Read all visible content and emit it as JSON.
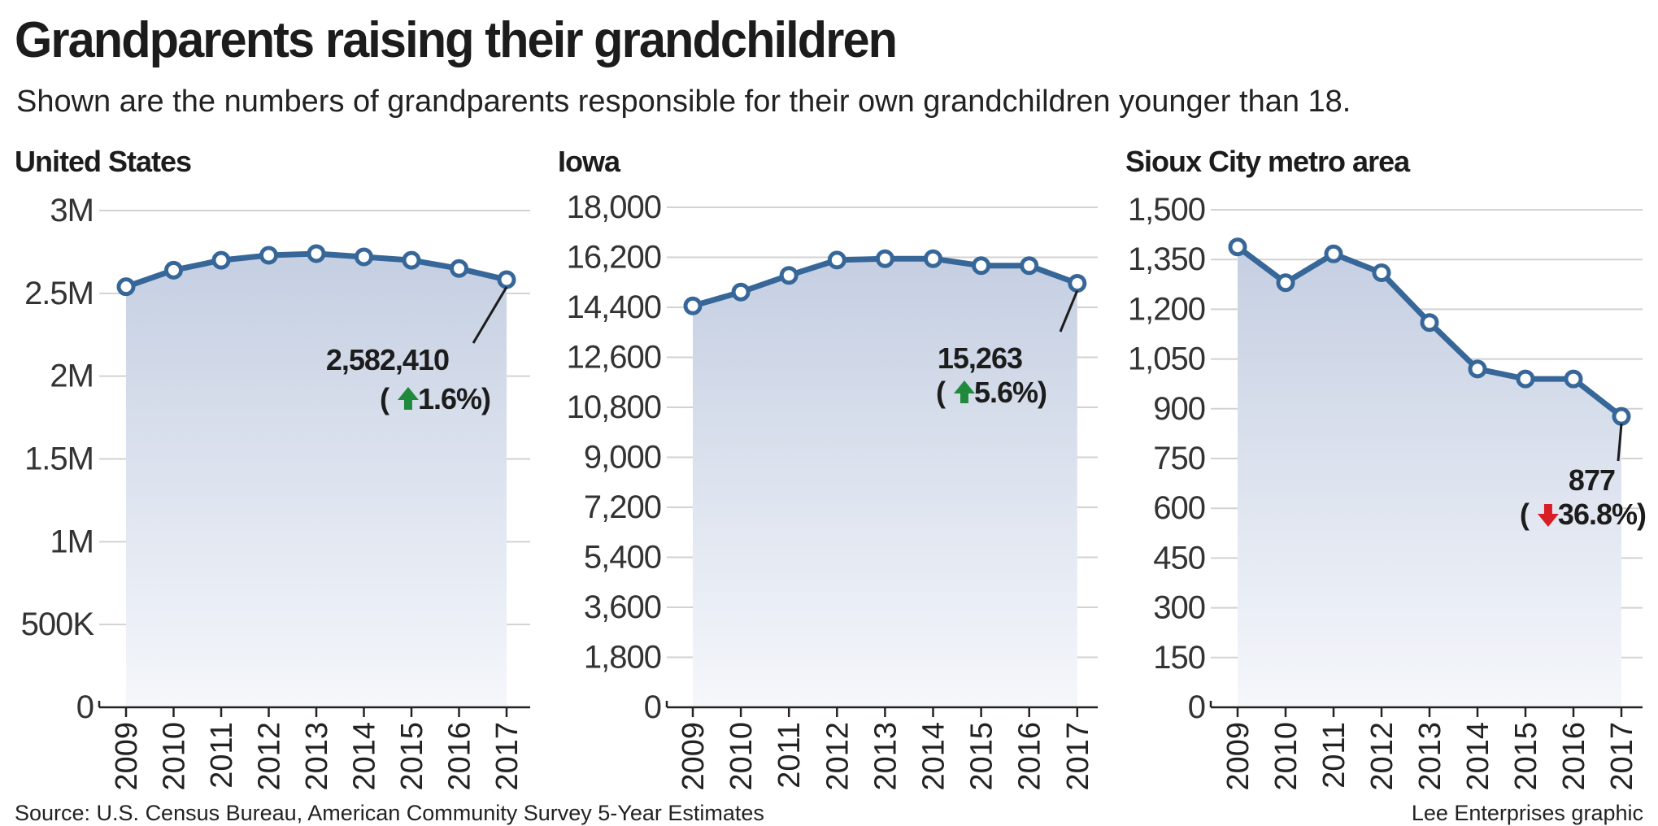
{
  "header": {
    "title": "Grandparents raising their grandchildren",
    "subtitle": "Shown are the numbers of grandparents responsible for their own grandchildren younger than 18."
  },
  "footer": {
    "source": "Source: U.S. Census Bureau, American Community Survey 5-Year Estimates",
    "credit": "Lee Enterprises graphic"
  },
  "colors": {
    "line": "#376799",
    "fill_top": "#c5cfe2",
    "fill_bottom": "#f5f7fb",
    "grid": "#d2d2d2",
    "up_arrow": "#1f8a3c",
    "down_arrow": "#d81f26"
  },
  "chart_data": [
    {
      "type": "area",
      "title": "United States",
      "categories": [
        "2009",
        "2010",
        "2011",
        "2012",
        "2013",
        "2014",
        "2015",
        "2016",
        "2017"
      ],
      "values": [
        2540000,
        2640000,
        2700000,
        2730000,
        2740000,
        2720000,
        2700000,
        2650000,
        2582410
      ],
      "ylim": [
        0,
        3000000
      ],
      "yticks": [
        0,
        500000,
        1000000,
        1500000,
        2000000,
        2500000,
        3000000
      ],
      "ytick_labels": [
        "0",
        "500K",
        "1M",
        "1.5M",
        "2M",
        "2.5M",
        "3M"
      ],
      "annotation": {
        "value": "2,582,410",
        "change": "1.6%",
        "direction": "up"
      }
    },
    {
      "type": "area",
      "title": "Iowa",
      "categories": [
        "2009",
        "2010",
        "2011",
        "2012",
        "2013",
        "2014",
        "2015",
        "2016",
        "2017"
      ],
      "values": [
        14450,
        14950,
        15550,
        16100,
        16150,
        16150,
        15900,
        15900,
        15263
      ],
      "ylim": [
        0,
        18000
      ],
      "yticks": [
        0,
        1800,
        3600,
        5400,
        7200,
        9000,
        10800,
        12600,
        14400,
        16200,
        18000
      ],
      "ytick_labels": [
        "0",
        "1,800",
        "3,600",
        "5,400",
        "7,200",
        "9,000",
        "10,800",
        "12,600",
        "14,400",
        "16,200",
        "18,000"
      ],
      "annotation": {
        "value": "15,263",
        "change": "5.6%",
        "direction": "up"
      }
    },
    {
      "type": "area",
      "title": "Sioux City metro area",
      "categories": [
        "2009",
        "2010",
        "2011",
        "2012",
        "2013",
        "2014",
        "2015",
        "2016",
        "2017"
      ],
      "values": [
        1388,
        1280,
        1367,
        1310,
        1160,
        1020,
        990,
        990,
        877
      ],
      "ylim": [
        0,
        1500
      ],
      "yticks": [
        0,
        150,
        300,
        450,
        600,
        750,
        900,
        1050,
        1200,
        1350,
        1500
      ],
      "ytick_labels": [
        "0",
        "150",
        "300",
        "450",
        "600",
        "750",
        "900",
        "1,050",
        "1,200",
        "1,350",
        "1,500"
      ],
      "annotation": {
        "value": "877",
        "change": "36.8%",
        "direction": "down"
      }
    }
  ]
}
